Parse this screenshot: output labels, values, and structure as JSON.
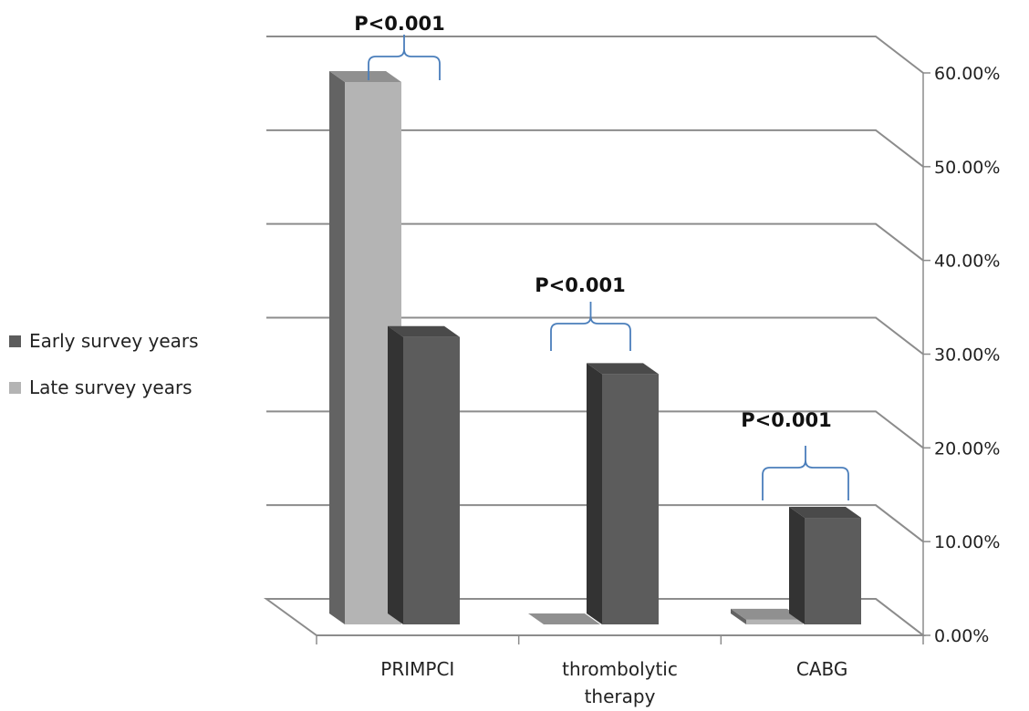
{
  "chart_data": {
    "type": "bar",
    "style": "3d-clustered",
    "categories": [
      "PRIMPCI",
      "thrombolytic therapy",
      "CABG"
    ],
    "series": [
      {
        "name": "Early survey years",
        "values": [
          31,
          27,
          11.5
        ],
        "color": "#5c5c5c"
      },
      {
        "name": "Late survey years",
        "values": [
          58.5,
          0,
          0.5
        ],
        "color": "#b4b4b4"
      }
    ],
    "ylim": [
      0,
      60
    ],
    "yticks": [
      "0.00%",
      "10.00%",
      "20.00%",
      "30.00%",
      "40.00%",
      "50.00%",
      "60.00%"
    ],
    "y_axis_position": "right",
    "grid": true,
    "legend_position": "left",
    "annotations": [
      "P<0.001",
      "P<0.001",
      "P<0.001"
    ],
    "annotation_color": "#4a7ebb"
  }
}
